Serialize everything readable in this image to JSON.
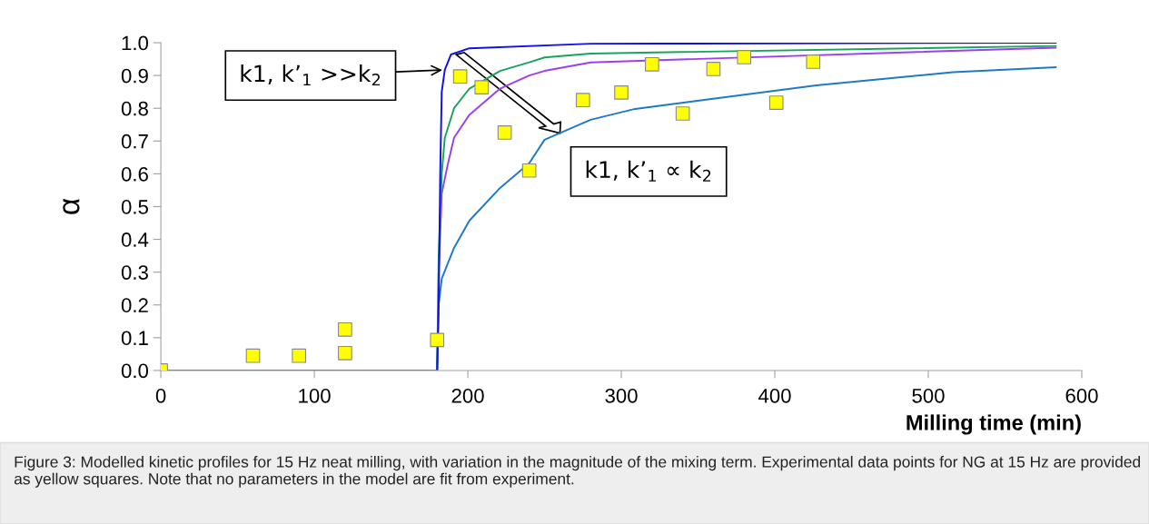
{
  "chart_data": {
    "type": "line",
    "xlabel": "Milling time (min)",
    "ylabel": "α",
    "xlim": [
      0,
      600
    ],
    "xticks": [
      0,
      100,
      200,
      300,
      400,
      500,
      600
    ],
    "ylim": [
      0,
      1.0
    ],
    "yticks": [
      {
        "value": 0,
        "label": "0.0"
      },
      0.1,
      0.2,
      0.3,
      0.4,
      0.5,
      0.6,
      0.7,
      0.8,
      0.9,
      {
        "value": 1.0,
        "label": "1.0"
      }
    ],
    "grid": false,
    "legend": false,
    "series": [
      {
        "color": "#1f78c8",
        "x": [
          0,
          180,
          181,
          183,
          191,
          201,
          221,
          240,
          250,
          280,
          309,
          427,
          516,
          583
        ],
        "values": [
          0,
          0,
          0.2,
          0.28,
          0.374,
          0.457,
          0.557,
          0.632,
          0.704,
          0.765,
          0.798,
          0.87,
          0.91,
          0.925
        ]
      },
      {
        "color": "#9b3ff0",
        "x": [
          180,
          181,
          183,
          187,
          191,
          201,
          221,
          240,
          250,
          280,
          583
        ],
        "values": [
          0,
          0.3,
          0.54,
          0.63,
          0.71,
          0.78,
          0.86,
          0.9,
          0.914,
          0.94,
          0.985
        ]
      },
      {
        "color": "#1aa35a",
        "x": [
          180,
          181,
          183,
          185,
          191,
          201,
          221,
          240,
          250,
          280,
          583
        ],
        "values": [
          0,
          0.35,
          0.6,
          0.71,
          0.8,
          0.86,
          0.914,
          0.94,
          0.955,
          0.967,
          0.99
        ]
      },
      {
        "color": "#1010e8",
        "x": [
          180,
          181,
          182,
          183,
          185,
          189,
          201,
          280,
          400,
          583
        ],
        "values": [
          0,
          0.2,
          0.6,
          0.85,
          0.917,
          0.964,
          0.983,
          0.997,
          0.998,
          1.0
        ]
      },
      {
        "type": "scatter",
        "marker": "square",
        "color": "#ffff00",
        "x": [
          0,
          60,
          90,
          120,
          120,
          180,
          195,
          209,
          224,
          240,
          275,
          300,
          320,
          340,
          360,
          380,
          401,
          425
        ],
        "values": [
          0,
          0.045,
          0.045,
          0.125,
          0.053,
          0.093,
          0.897,
          0.864,
          0.726,
          0.61,
          0.825,
          0.848,
          0.934,
          0.784,
          0.92,
          0.956,
          0.817,
          0.942
        ]
      }
    ],
    "annotations": [
      {
        "text": "k1, k’$_{1}$ >>k$_{2}$",
        "x": 185,
        "y": 0.917
      },
      {
        "text": "k1, k’$_{1}$ ∝ k$_{2}$",
        "x": 260,
        "y": 0.724
      },
      "Figure 3: Modelled kinetic profiles for 15 Hz neat milling, with variation in the magnitude of the mixing term. Experimental data points for NG at 15 Hz are provided as yellow squares. Note that no parameters in the model are fit from experiment."
    ]
  }
}
